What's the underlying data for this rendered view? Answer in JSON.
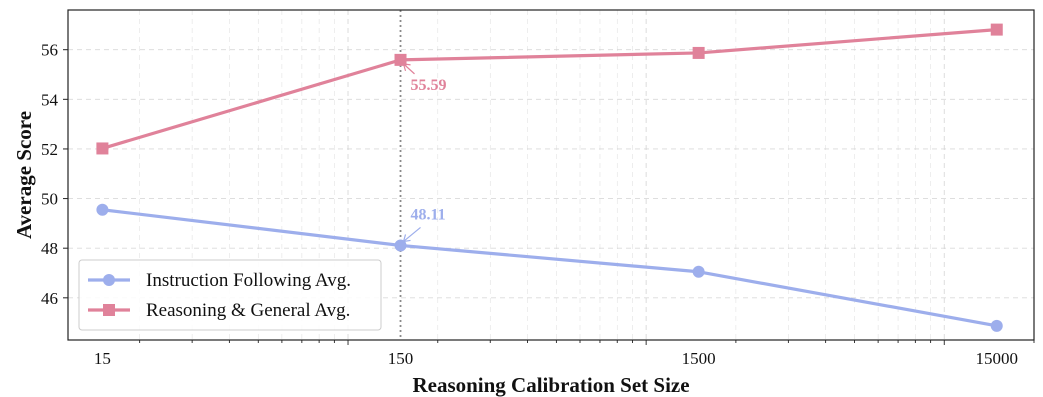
{
  "chart_data": {
    "type": "line",
    "x_scale": "log",
    "x": [
      15,
      150,
      1500,
      15000
    ],
    "x_tick_labels": [
      "15",
      "150",
      "1500",
      "15000"
    ],
    "xlim": [
      11.5,
      20000
    ],
    "ylim": [
      44.3,
      57.6
    ],
    "y_ticks": [
      46,
      48,
      50,
      52,
      54,
      56
    ],
    "y_tick_labels": [
      "46",
      "48",
      "50",
      "52",
      "54",
      "56"
    ],
    "xlabel": "Reasoning Calibration Set Size",
    "ylabel": "Average Score",
    "grid": true,
    "vline_x": 150,
    "legend_position": "lower-left",
    "series": [
      {
        "name": "Instruction Following Avg.",
        "values": [
          49.55,
          48.11,
          47.05,
          44.87
        ],
        "color": "#9daeec",
        "marker": "circle",
        "annotation": {
          "x": 150,
          "y": 48.11,
          "text": "48.11",
          "placement": "above"
        }
      },
      {
        "name": "Reasoning & General Avg.",
        "values": [
          52.02,
          55.59,
          55.87,
          56.81
        ],
        "color": "#e0829a",
        "marker": "square",
        "annotation": {
          "x": 150,
          "y": 55.59,
          "text": "55.59",
          "placement": "below"
        }
      }
    ]
  }
}
